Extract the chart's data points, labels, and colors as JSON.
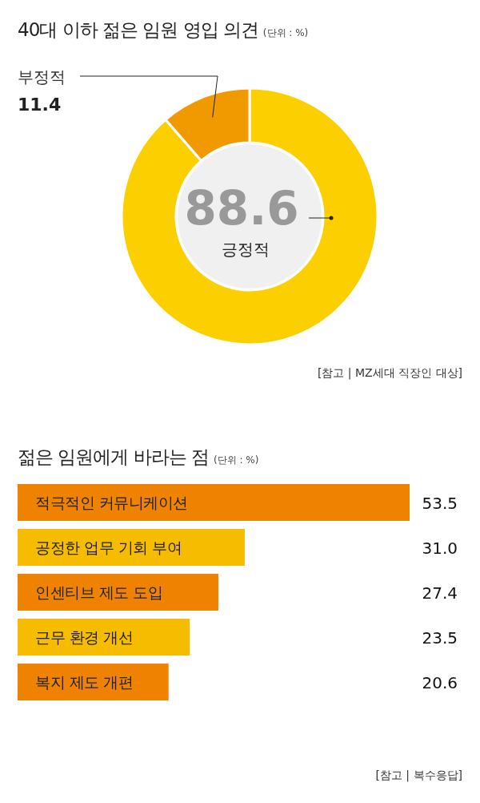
{
  "chart_data": [
    {
      "type": "donut",
      "title": "40대 이하 젊은 임원 영입 의견",
      "subtitle": "(단위 : %)",
      "categories": [
        "긍정적",
        "부정적"
      ],
      "values": [
        88.6,
        11.4
      ],
      "colors": [
        "#fbcf00",
        "#f09a00"
      ],
      "data_labels": true,
      "annotations": [
        "[참고 | MZ세대 직장인 대상]"
      ]
    },
    {
      "type": "bar",
      "orientation": "horizontal",
      "title": "젊은 임원에게 바라는 점",
      "subtitle": "(단위 : %)",
      "categories": [
        "적극적인 커뮤니케이션",
        "공정한 업무 기회 부여",
        "인센티브 제도 도입",
        "근무 환경 개선",
        "복지 제도 개편"
      ],
      "values": [
        53.5,
        31.0,
        27.4,
        23.5,
        20.6
      ],
      "value_labels": [
        "53.5",
        "31.0",
        "27.4",
        "23.5",
        "20.6"
      ],
      "colors": [
        "#ef8200",
        "#f6bc00",
        "#ef8200",
        "#f6bc00",
        "#ef8200"
      ],
      "annotations": [
        "[참고 | 복수응답]"
      ]
    }
  ]
}
